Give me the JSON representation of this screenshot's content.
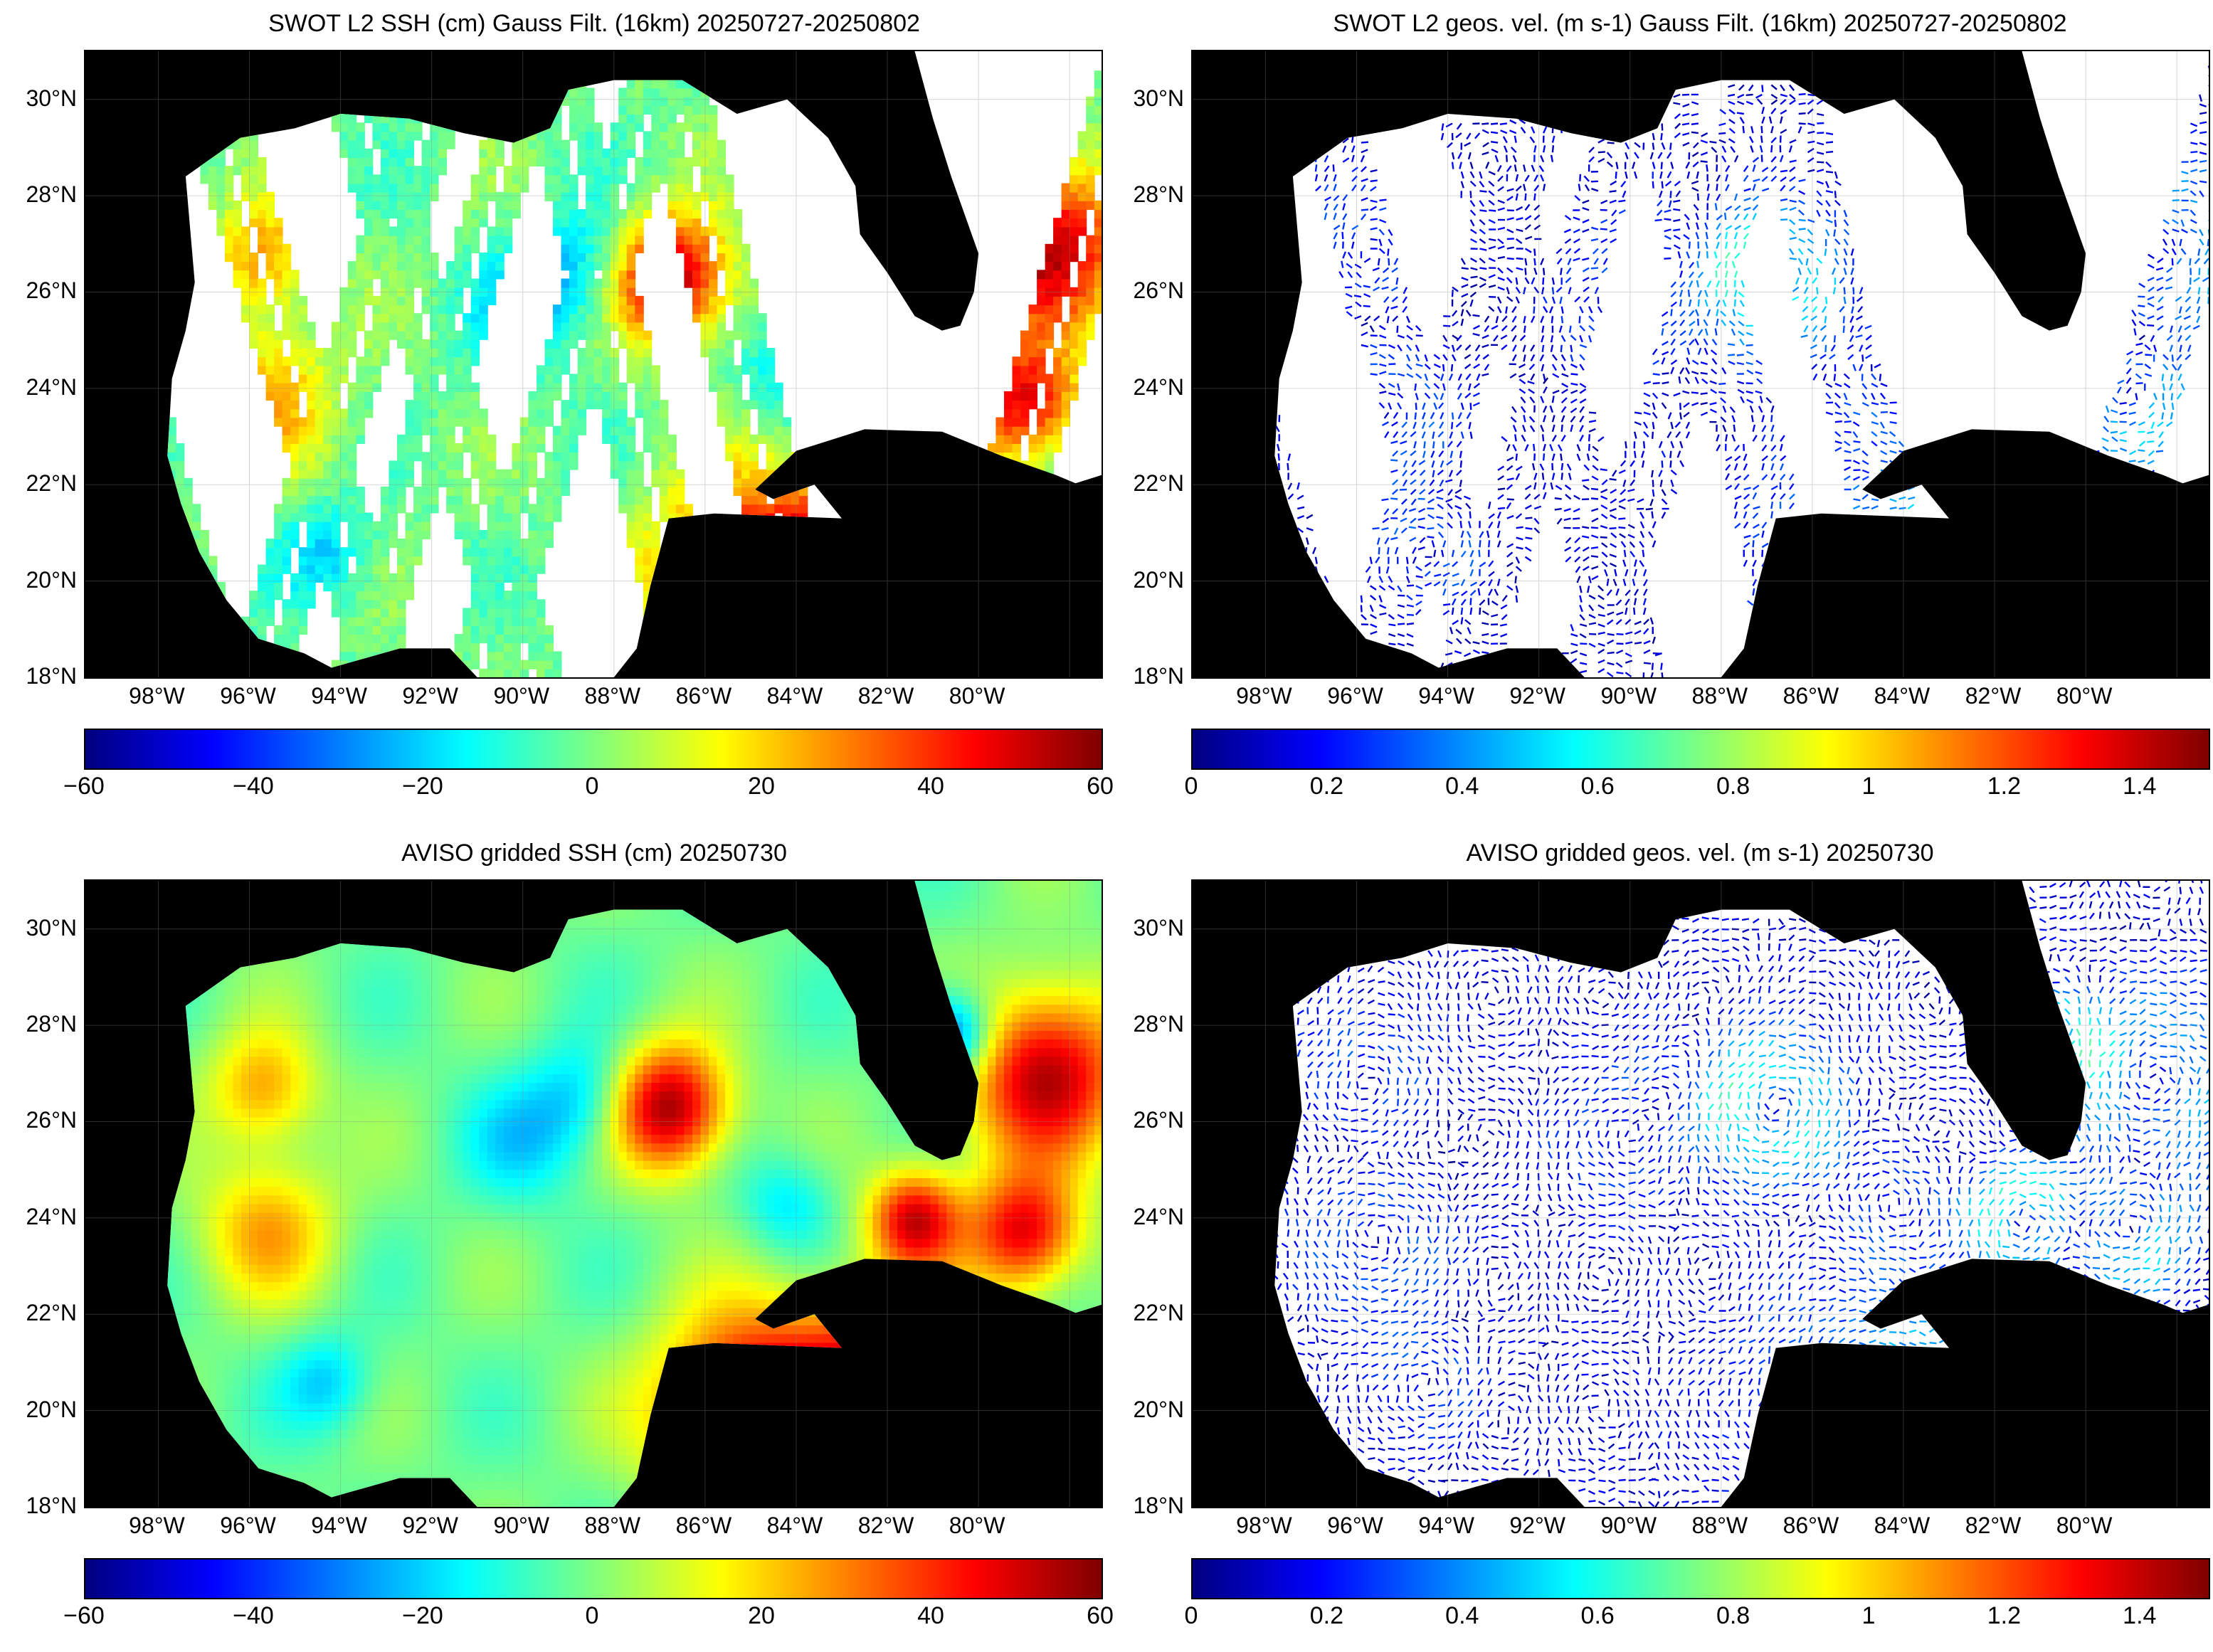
{
  "panels": [
    {
      "title": "SWOT L2 SSH (cm) Gauss Filt. (16km) 20250727-20250802",
      "cbar_ticks": [
        "−60",
        "−40",
        "−20",
        "0",
        "20",
        "40",
        "60"
      ],
      "kind": "swot_ssh"
    },
    {
      "title": "SWOT L2 geos. vel. (m s-1) Gauss Filt. (16km) 20250727-20250802",
      "cbar_ticks": [
        "0",
        "0.2",
        "0.4",
        "0.6",
        "0.8",
        "1",
        "1.2",
        "1.4"
      ],
      "kind": "swot_vel"
    },
    {
      "title": "AVISO gridded SSH (cm) 20250730",
      "cbar_ticks": [
        "−60",
        "−40",
        "−20",
        "0",
        "20",
        "40",
        "60"
      ],
      "kind": "aviso_ssh"
    },
    {
      "title": "AVISO gridded geos. vel. (m s-1)  20250730",
      "cbar_ticks": [
        "0",
        "0.2",
        "0.4",
        "0.6",
        "0.8",
        "1",
        "1.2",
        "1.4"
      ],
      "kind": "aviso_vel"
    }
  ],
  "lat_labels": [
    "30°N",
    "28°N",
    "26°N",
    "24°N",
    "22°N",
    "20°N",
    "18°N"
  ],
  "lon_labels": [
    "98°W",
    "96°W",
    "94°W",
    "92°W",
    "90°W",
    "88°W",
    "86°W",
    "84°W",
    "82°W",
    "80°W"
  ],
  "colormap": [
    "#00007f",
    "#0000ff",
    "#007fff",
    "#00ffff",
    "#7fff7f",
    "#ffff00",
    "#ff7f00",
    "#ff0000",
    "#7f0000"
  ],
  "land_color": "#000000",
  "ocean_missing_color": "#ffffff"
}
